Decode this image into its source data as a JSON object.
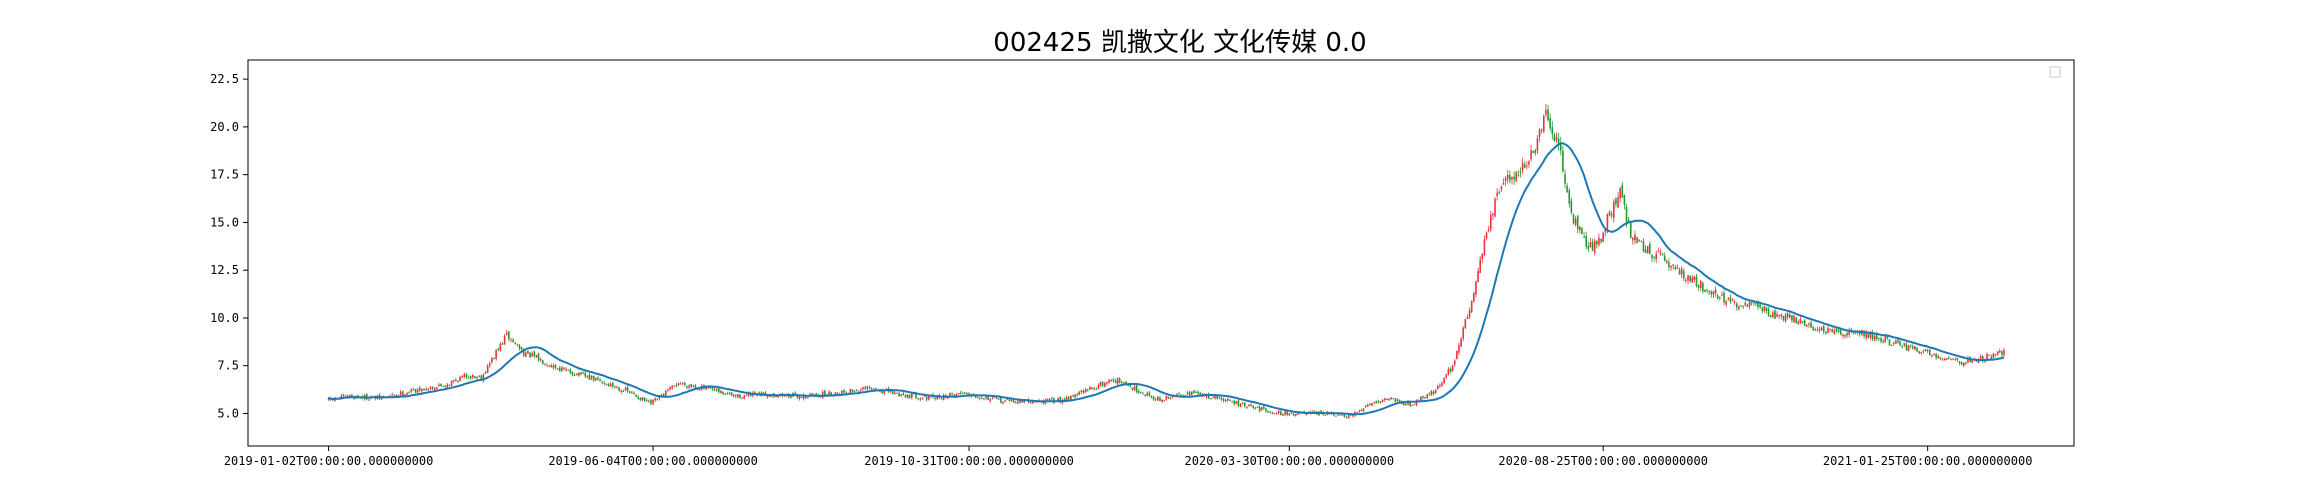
{
  "chart_data": {
    "type": "candlestick",
    "title": "002425 凯撒文化 文化传媒 0.0",
    "xlabel": "",
    "ylabel": "",
    "ylim": [
      3.3,
      23.5
    ],
    "yticks": [
      5.0,
      7.5,
      10.0,
      12.5,
      15.0,
      17.5,
      20.0,
      22.5
    ],
    "ytick_labels": [
      "5.0",
      "7.5",
      "10.0",
      "12.5",
      "15.0",
      "17.5",
      "20.0",
      "22.5"
    ],
    "xlim_days": [
      -38,
      823
    ],
    "xticks": [
      {
        "day": 0,
        "label": "2019-01-02T00:00:00.000000000"
      },
      {
        "day": 153,
        "label": "2019-06-04T00:00:00.000000000"
      },
      {
        "day": 302,
        "label": "2019-10-31T00:00:00.000000000"
      },
      {
        "day": 453,
        "label": "2020-03-30T00:00:00.000000000"
      },
      {
        "day": 601,
        "label": "2020-08-25T00:00:00.000000000"
      },
      {
        "day": 754,
        "label": "2021-01-25T00:00:00.000000000"
      }
    ],
    "up_color": "#e8323c",
    "down_color": "#1f9a2e",
    "ma_color": "#1f77b4",
    "legend": "top-right",
    "grid": false,
    "close_series": {
      "start_date": "2019-01-02",
      "end_date": "2021-02-10",
      "anchors": [
        [
          0,
          5.7
        ],
        [
          10,
          5.9
        ],
        [
          25,
          5.8
        ],
        [
          40,
          6.2
        ],
        [
          55,
          6.5
        ],
        [
          65,
          7.0
        ],
        [
          72,
          6.9
        ],
        [
          78,
          8.0
        ],
        [
          84,
          9.1
        ],
        [
          92,
          8.2
        ],
        [
          110,
          7.3
        ],
        [
          125,
          6.8
        ],
        [
          140,
          6.2
        ],
        [
          152,
          5.5
        ],
        [
          165,
          6.6
        ],
        [
          178,
          6.3
        ],
        [
          192,
          5.9
        ],
        [
          208,
          6.0
        ],
        [
          225,
          5.9
        ],
        [
          240,
          6.1
        ],
        [
          255,
          6.3
        ],
        [
          270,
          6.0
        ],
        [
          285,
          5.8
        ],
        [
          300,
          6.1
        ],
        [
          315,
          5.7
        ],
        [
          330,
          5.6
        ],
        [
          345,
          5.7
        ],
        [
          355,
          6.1
        ],
        [
          370,
          6.8
        ],
        [
          382,
          6.2
        ],
        [
          392,
          5.7
        ],
        [
          405,
          6.1
        ],
        [
          420,
          5.8
        ],
        [
          432,
          5.4
        ],
        [
          450,
          5.0
        ],
        [
          470,
          5.0
        ],
        [
          482,
          4.8
        ],
        [
          490,
          5.5
        ],
        [
          500,
          5.8
        ],
        [
          510,
          5.5
        ],
        [
          522,
          6.2
        ],
        [
          530,
          7.5
        ],
        [
          538,
          10.5
        ],
        [
          546,
          14.5
        ],
        [
          553,
          17.0
        ],
        [
          560,
          17.6
        ],
        [
          568,
          18.5
        ],
        [
          574,
          20.5
        ],
        [
          580,
          19.0
        ],
        [
          586,
          15.5
        ],
        [
          592,
          14.0
        ],
        [
          598,
          13.7
        ],
        [
          604,
          15.5
        ],
        [
          609,
          16.5
        ],
        [
          614,
          14.5
        ],
        [
          620,
          13.7
        ],
        [
          630,
          13.0
        ],
        [
          640,
          12.2
        ],
        [
          650,
          11.5
        ],
        [
          658,
          11.0
        ],
        [
          665,
          10.5
        ],
        [
          672,
          10.8
        ],
        [
          680,
          10.2
        ],
        [
          690,
          10.0
        ],
        [
          700,
          9.5
        ],
        [
          710,
          9.2
        ],
        [
          720,
          9.3
        ],
        [
          730,
          9.0
        ],
        [
          740,
          8.6
        ],
        [
          750,
          8.3
        ],
        [
          760,
          8.0
        ],
        [
          770,
          7.7
        ],
        [
          780,
          7.9
        ],
        [
          790,
          8.2
        ]
      ]
    },
    "moving_average_window": 20
  }
}
